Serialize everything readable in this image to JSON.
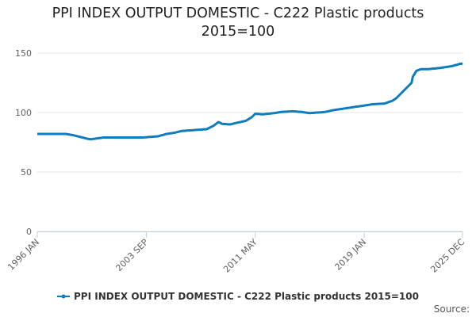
{
  "chart_data": {
    "type": "line",
    "title": "PPI INDEX OUTPUT DOMESTIC - C222 Plastic products 2015=100",
    "source_label": "Source:",
    "categories": [
      "1996 JAN",
      null,
      null,
      null,
      null,
      null,
      null,
      null,
      null,
      null,
      null,
      null,
      null,
      null,
      null,
      null,
      null,
      null,
      null,
      null,
      null,
      null,
      null,
      null,
      null,
      null,
      null,
      null,
      null,
      null,
      null,
      null,
      null,
      null,
      null,
      null,
      null,
      null,
      null,
      null,
      null,
      null,
      null,
      null,
      null,
      null,
      null,
      null,
      null,
      null,
      null,
      null,
      null,
      null,
      null,
      null,
      null,
      null,
      null,
      null,
      null,
      null,
      null,
      null,
      null,
      null,
      null,
      null,
      null,
      null,
      null,
      null,
      null,
      null,
      null,
      null,
      null,
      null,
      null,
      null,
      null,
      null,
      null,
      null,
      null,
      null,
      null,
      null,
      null,
      null,
      null,
      null,
      "2003 SEP",
      null,
      null,
      null,
      null,
      null,
      null,
      null,
      null,
      null,
      null,
      null,
      null,
      null,
      null,
      null,
      null,
      null,
      null,
      null,
      null,
      null,
      null,
      null,
      null,
      null,
      null,
      null,
      null,
      null,
      null,
      null,
      null,
      null,
      null,
      null,
      null,
      null,
      null,
      null,
      null,
      null,
      null,
      null,
      null,
      null,
      null,
      null,
      null,
      null,
      null,
      null,
      null,
      null,
      null,
      null,
      null,
      null,
      null,
      null,
      null,
      null,
      null,
      null,
      null,
      null,
      null,
      null,
      null,
      null,
      null,
      null,
      null,
      null,
      null,
      null,
      null,
      null,
      null,
      null,
      null,
      null,
      null,
      null,
      null,
      null,
      null,
      null,
      null,
      null,
      null,
      null,
      "2011 MAY",
      null,
      null,
      null,
      null,
      null,
      null,
      null,
      null,
      null,
      null,
      null,
      null,
      null,
      null,
      null,
      null,
      null,
      null,
      null,
      null,
      null,
      null,
      null,
      null,
      null,
      null,
      null,
      null,
      null,
      null,
      null,
      null,
      null,
      null,
      null,
      null,
      null,
      null,
      null,
      null,
      null,
      null,
      null,
      null,
      null,
      null,
      null,
      null,
      null,
      null,
      null,
      null,
      null,
      null,
      null,
      null,
      null,
      null,
      null,
      null,
      null,
      null,
      null,
      null,
      null,
      null,
      null,
      null,
      null,
      null,
      null,
      null,
      null,
      null,
      null,
      null,
      null,
      null,
      null,
      null,
      null,
      null,
      null,
      null,
      null,
      null,
      null,
      null,
      null,
      null,
      null,
      "2019 JAN",
      null,
      null,
      null,
      null,
      null,
      null,
      null,
      null,
      null,
      null,
      null,
      null,
      null,
      null,
      null,
      null,
      null,
      null,
      null,
      null,
      null,
      null,
      null,
      null,
      null,
      null,
      null,
      null,
      null,
      null,
      null,
      null,
      null,
      null,
      null,
      null,
      null,
      null,
      null,
      null,
      null,
      null,
      null,
      null,
      null,
      null,
      null,
      null,
      null,
      null,
      null,
      null,
      null,
      null,
      null,
      null,
      null,
      null,
      null,
      null,
      null,
      null,
      null,
      null,
      null,
      null,
      null,
      null,
      null,
      null,
      null,
      null,
      null,
      null,
      null,
      null,
      null,
      null,
      null,
      null,
      null,
      null,
      "2025 DEC"
    ],
    "series": [
      {
        "name": "PPI INDEX OUTPUT DOMESTIC - C222 Plastic products 2015=100",
        "color": "#0f7cbf",
        "values": [
          82,
          82,
          82,
          82,
          82,
          82,
          82,
          82,
          82,
          82,
          82,
          82,
          82,
          82,
          82,
          82,
          82,
          82,
          82,
          82,
          82,
          82,
          82,
          82,
          82,
          81.8,
          81.7,
          81.5,
          81.3,
          81.2,
          81,
          80.8,
          80.5,
          80.3,
          80,
          79.8,
          79.5,
          79.3,
          79,
          78.8,
          78.5,
          78.3,
          78,
          77.8,
          77.7,
          77.5,
          77.6,
          77.8,
          77.9,
          78,
          78.2,
          78.3,
          78.5,
          78.6,
          78.7,
          78.9,
          79,
          79,
          79,
          79,
          79,
          79,
          79,
          79,
          79,
          79,
          79,
          79,
          79,
          79,
          79,
          79,
          79,
          79,
          79,
          79,
          79,
          79,
          79,
          79,
          79,
          79,
          79,
          79,
          79,
          79,
          79,
          79,
          79,
          79,
          79.1,
          79.2,
          79.2,
          79.3,
          79.4,
          79.5,
          79.5,
          79.6,
          79.7,
          79.8,
          79.8,
          79.9,
          80,
          80.3,
          80.6,
          80.9,
          81.1,
          81.4,
          81.7,
          82,
          82.1,
          82.3,
          82.4,
          82.6,
          82.7,
          82.9,
          83,
          83.3,
          83.5,
          83.8,
          84,
          84.3,
          84.5,
          84.6,
          84.6,
          84.7,
          84.8,
          84.9,
          84.9,
          85,
          85.1,
          85.1,
          85.2,
          85.3,
          85.4,
          85.4,
          85.5,
          85.6,
          85.6,
          85.7,
          85.8,
          85.9,
          85.9,
          86,
          86.5,
          87,
          87.5,
          88,
          88.5,
          89,
          89.8,
          90.5,
          91.3,
          92,
          91.5,
          91,
          90.5,
          90.4,
          90.3,
          90.3,
          90.2,
          90.1,
          90.1,
          90,
          90.3,
          90.5,
          90.8,
          91,
          91.3,
          91.5,
          91.7,
          91.9,
          92.1,
          92.4,
          92.6,
          92.8,
          93,
          93.6,
          94.2,
          94.8,
          95.4,
          96,
          97,
          98,
          99,
          98.9,
          98.8,
          98.8,
          98.7,
          98.6,
          98.5,
          98.6,
          98.7,
          98.8,
          98.9,
          99,
          99.1,
          99.2,
          99.3,
          99.4,
          99.5,
          99.7,
          99.8,
          100,
          100.2,
          100.3,
          100.5,
          100.6,
          100.6,
          100.7,
          100.7,
          100.8,
          100.8,
          100.9,
          100.9,
          101,
          101,
          100.9,
          100.9,
          100.8,
          100.7,
          100.6,
          100.6,
          100.5,
          100.4,
          100.2,
          100.1,
          99.9,
          99.8,
          99.6,
          99.5,
          99.6,
          99.7,
          99.7,
          99.8,
          99.9,
          100,
          100,
          100.1,
          100.2,
          100.2,
          100.3,
          100.4,
          100.5,
          100.7,
          100.9,
          101.1,
          101.4,
          101.6,
          101.8,
          102,
          102.2,
          102.3,
          102.5,
          102.6,
          102.8,
          102.9,
          103.1,
          103.2,
          103.4,
          103.5,
          103.7,
          103.8,
          104,
          104.1,
          104.3,
          104.4,
          104.6,
          104.7,
          104.9,
          105,
          105.1,
          105.3,
          105.4,
          105.6,
          105.7,
          105.9,
          106,
          106.2,
          106.3,
          106.5,
          106.7,
          106.8,
          107,
          107.1,
          107.1,
          107.2,
          107.2,
          107.3,
          107.3,
          107.4,
          107.4,
          107.5,
          107.5,
          107.9,
          108.2,
          108.6,
          108.9,
          109.3,
          109.6,
          110,
          110.7,
          111.3,
          112,
          113,
          114,
          115,
          116,
          117,
          118,
          119,
          120,
          121,
          122,
          123,
          124,
          125,
          130,
          131.7,
          133.3,
          135,
          135.4,
          135.8,
          136.1,
          136.5,
          136.5,
          136.5,
          136.5,
          136.5,
          136.5,
          136.5,
          136.6,
          136.7,
          136.8,
          136.9,
          137,
          137.1,
          137.2,
          137.3,
          137.4,
          137.5,
          137.7,
          137.8,
          138,
          138.1,
          138.3,
          138.4,
          138.6,
          138.7,
          138.9,
          139,
          139.3,
          139.6,
          139.9,
          140.1,
          140.4,
          140.7,
          141,
          141,
          141
        ]
      }
    ],
    "ylim": [
      0,
      150
    ],
    "yticks": [
      0,
      50,
      100,
      150
    ],
    "grid": true,
    "legend": "bottom"
  }
}
